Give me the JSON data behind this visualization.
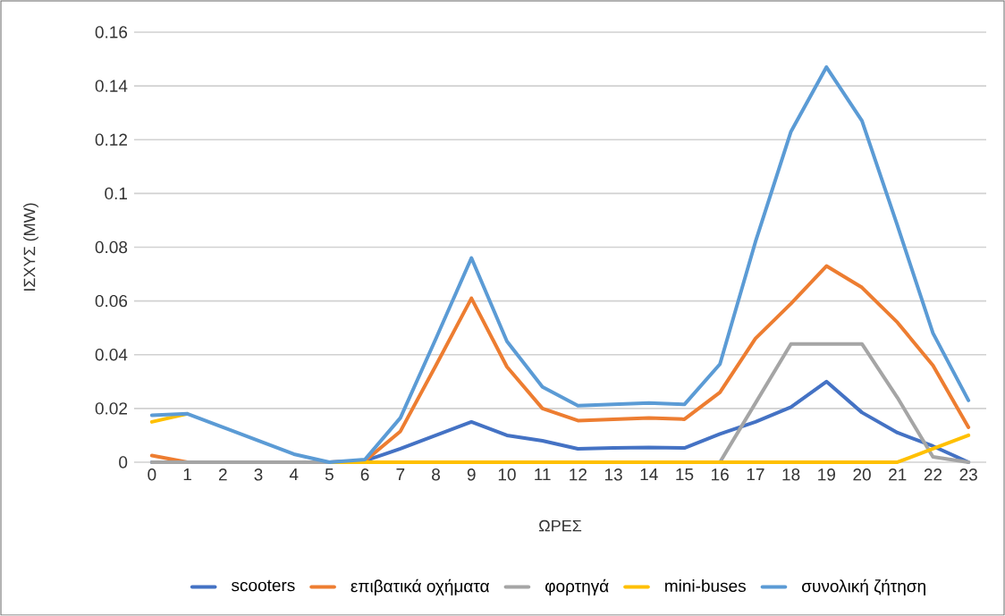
{
  "chart_data": {
    "type": "line",
    "xlabel": "ΩΡΕΣ",
    "ylabel": "ΙΣΧΥΣ (MW)",
    "categories": [
      "0",
      "1",
      "2",
      "3",
      "4",
      "5",
      "6",
      "7",
      "8",
      "9",
      "10",
      "11",
      "12",
      "13",
      "14",
      "15",
      "16",
      "17",
      "18",
      "19",
      "20",
      "21",
      "22",
      "23"
    ],
    "ylim": [
      0,
      0.16
    ],
    "yticks": [
      0,
      0.02,
      0.04,
      0.06,
      0.08,
      0.1,
      0.12,
      0.14,
      0.16
    ],
    "grid": "y",
    "legend": "bottom",
    "marker": "none",
    "line_style": "solid",
    "series": [
      {
        "name": "scooters",
        "color": "#4472c4",
        "values": [
          0,
          0,
          0,
          0,
          0,
          0,
          0.0005,
          0.005,
          0.01,
          0.015,
          0.01,
          0.008,
          0.005,
          0.0053,
          0.0055,
          0.0053,
          0.0105,
          0.015,
          0.0205,
          0.03,
          0.0185,
          0.011,
          0.006,
          0
        ]
      },
      {
        "name": "επιβατικά οχήματα",
        "color": "#ed7d31",
        "values": [
          0.0025,
          0,
          0,
          0,
          0,
          0,
          0.0005,
          0.0115,
          0.036,
          0.061,
          0.0355,
          0.02,
          0.0155,
          0.016,
          0.0165,
          0.016,
          0.026,
          0.046,
          0.059,
          0.073,
          0.065,
          0.052,
          0.036,
          0.013
        ]
      },
      {
        "name": "φορτηγά",
        "color": "#a5a5a5",
        "values": [
          0,
          0,
          0,
          0,
          0,
          0,
          0,
          0,
          0,
          0,
          0,
          0,
          0,
          0,
          0,
          0,
          0,
          0.022,
          0.044,
          0.044,
          0.044,
          0.024,
          0.002,
          0
        ]
      },
      {
        "name": "mini-buses",
        "color": "#ffc000",
        "values": [
          0.015,
          0.018,
          null,
          null,
          null,
          0,
          0,
          0,
          0,
          0,
          0,
          0,
          0,
          0,
          0,
          0,
          0,
          0,
          0,
          0,
          0,
          0,
          0.005,
          0.01
        ]
      },
      {
        "name": "συνολική ζήτηση",
        "color": "#5b9bd5",
        "values": [
          0.0175,
          0.018,
          0.013,
          0.008,
          0.003,
          0,
          0.001,
          0.0165,
          0.046,
          0.076,
          0.045,
          0.028,
          0.021,
          0.0215,
          0.022,
          0.0215,
          0.0365,
          0.082,
          0.123,
          0.147,
          0.127,
          0.088,
          0.048,
          0.023
        ]
      }
    ]
  }
}
